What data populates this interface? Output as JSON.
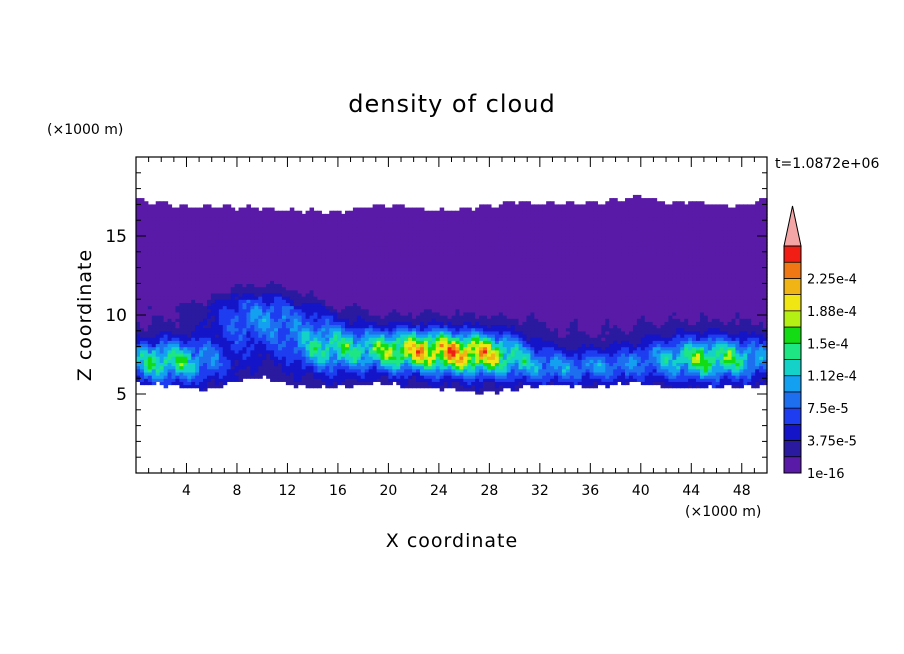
{
  "chart_data": {
    "type": "heatmap",
    "title": "density of cloud",
    "xlabel": "X coordinate",
    "ylabel": "Z coordinate",
    "x_unit": "(×1000 m)",
    "y_unit": "(×1000 m)",
    "time_label": "t=1.0872e+06",
    "xlim": [
      0,
      50
    ],
    "ylim": [
      0,
      20
    ],
    "x_ticks": [
      4,
      8,
      12,
      16,
      20,
      24,
      28,
      32,
      36,
      40,
      44,
      48
    ],
    "y_ticks": [
      5,
      10,
      15
    ],
    "colorbar": {
      "labels": [
        "1e-16",
        "3.75e-5",
        "7.5e-5",
        "1.12e-4",
        "1.5e-4",
        "1.88e-4",
        "2.25e-4"
      ],
      "levels": [
        1e-16,
        1.875e-05,
        3.75e-05,
        5.625e-05,
        7.5e-05,
        9.375e-05,
        0.0001125,
        0.00013125,
        0.00015,
        0.00016875,
        0.0001875,
        0.00020625,
        0.000225,
        0.00024375
      ],
      "colors": [
        "#5a1aa8",
        "#2a1aa0",
        "#1414c8",
        "#1e3cf0",
        "#1e6ef0",
        "#14a0f0",
        "#14d2c8",
        "#1ee682",
        "#14dc14",
        "#b4f014",
        "#f0e614",
        "#f0b414",
        "#f07814",
        "#f01e14"
      ],
      "overflow_color": "#f4a6a6",
      "extend": "max"
    },
    "cloud": {
      "x": [
        0,
        2,
        4,
        6,
        8,
        10,
        12,
        14,
        16,
        18,
        20,
        22,
        24,
        26,
        28,
        30,
        32,
        34,
        36,
        38,
        40,
        42,
        44,
        46,
        48,
        50
      ],
      "top_z": [
        17.3,
        17.1,
        16.8,
        16.9,
        16.8,
        16.8,
        16.6,
        16.6,
        16.5,
        16.8,
        17.0,
        16.8,
        16.6,
        16.7,
        16.9,
        17.2,
        17.0,
        17.1,
        17.1,
        17.3,
        17.5,
        17.1,
        17.2,
        17.0,
        16.9,
        17.3
      ],
      "base_z": [
        5.7,
        5.6,
        5.4,
        5.3,
        5.8,
        6.1,
        5.6,
        5.4,
        5.5,
        5.6,
        5.7,
        5.4,
        5.4,
        5.2,
        5.1,
        5.3,
        5.6,
        5.6,
        5.4,
        5.6,
        5.8,
        5.4,
        5.4,
        5.5,
        5.5,
        5.6
      ],
      "mid_band_top_z": [
        11.0,
        10.8,
        10.6,
        11.0,
        11.2,
        11.3,
        11.0,
        10.6,
        10.5,
        10.4,
        10.5,
        10.6,
        10.5,
        10.8,
        10.9,
        10.9,
        11.0,
        11.1,
        11.2,
        11.0,
        11.1,
        11.2,
        11.1,
        11.0,
        11.0,
        11.0
      ]
    },
    "cores": [
      {
        "x": 2.5,
        "z": 7.1,
        "sx": 3.0,
        "sz": 0.9,
        "amp": 0.00012
      },
      {
        "x": 10.0,
        "z": 9.8,
        "sx": 3.0,
        "sz": 1.3,
        "amp": 7.5e-05
      },
      {
        "x": 15.0,
        "z": 8.0,
        "sx": 2.0,
        "sz": 1.1,
        "amp": 8.5e-05
      },
      {
        "x": 22.0,
        "z": 7.8,
        "sx": 3.6,
        "sz": 0.9,
        "amp": 0.00016
      },
      {
        "x": 27.5,
        "z": 7.5,
        "sx": 2.6,
        "sz": 0.9,
        "amp": 0.00013
      },
      {
        "x": 33.0,
        "z": 6.7,
        "sx": 2.4,
        "sz": 0.7,
        "amp": 6e-05
      },
      {
        "x": 37.5,
        "z": 6.8,
        "sx": 2.0,
        "sz": 0.7,
        "amp": 5e-05
      },
      {
        "x": 45.5,
        "z": 7.3,
        "sx": 3.6,
        "sz": 0.9,
        "amp": 0.000135
      }
    ]
  }
}
